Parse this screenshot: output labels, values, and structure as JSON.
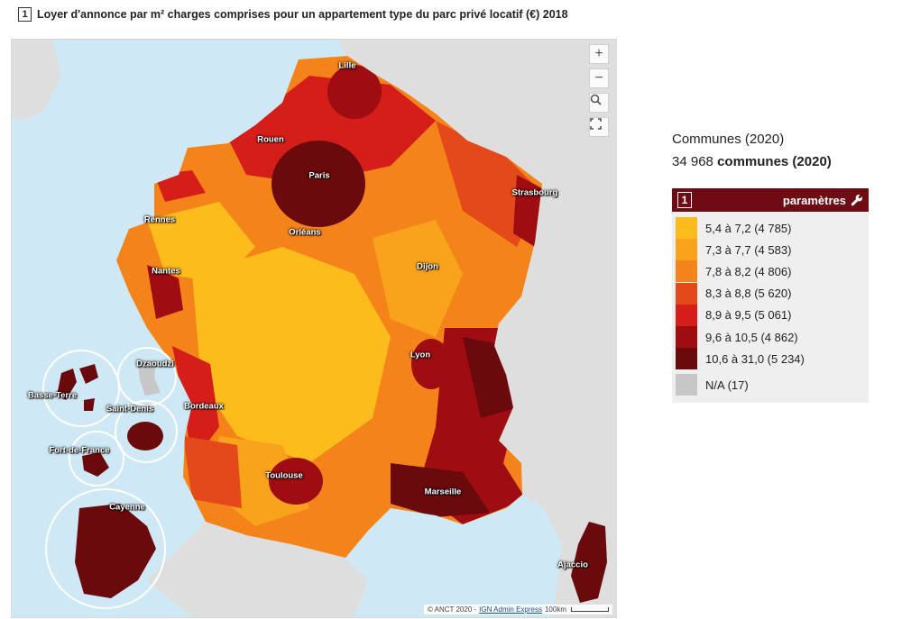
{
  "title": {
    "number": "1",
    "text": "Loyer d'annonce par m² charges comprises pour un appartement type du parc privé locatif (€) 2018"
  },
  "map": {
    "cities": [
      "Lille",
      "Rouen",
      "Paris",
      "Strasbourg",
      "Rennes",
      "Orléans",
      "Nantes",
      "Dijon",
      "Lyon",
      "Bordeaux",
      "Toulouse",
      "Marseille",
      "Ajaccio",
      "Dzaoudzi",
      "Basse-Terre",
      "Saint-Denis",
      "Fort-de-France",
      "Cayenne"
    ],
    "controls": {
      "zoom_in": "+",
      "zoom_out": "−"
    },
    "attribution": {
      "prefix": "© ANCT 2020 -",
      "link": "IGN Admin Express",
      "scale": "100km"
    }
  },
  "legend": {
    "unit": "Communes (2020)",
    "count_number": "34 968",
    "count_label": "communes (2020)",
    "number": "1",
    "params_label": "paramètres",
    "classes": [
      {
        "label": "5,4 à 7,2 (4 785)",
        "color": "#fdbb1c"
      },
      {
        "label": "7,3 à 7,7 (4 583)",
        "color": "#f9a21c"
      },
      {
        "label": "7,8 à 8,2 (4 806)",
        "color": "#f4841a"
      },
      {
        "label": "8,3 à 8,8 (5 620)",
        "color": "#e4491a"
      },
      {
        "label": "8,9 à 9,5 (5 061)",
        "color": "#d51e1a"
      },
      {
        "label": "9,6 à 10,5 (4 862)",
        "color": "#9f0c12"
      },
      {
        "label": "10,6 à 31,0 (5 234)",
        "color": "#6a0a0d"
      }
    ],
    "na": {
      "label": "N/A (17)",
      "color": "#c7c7c7"
    }
  }
}
